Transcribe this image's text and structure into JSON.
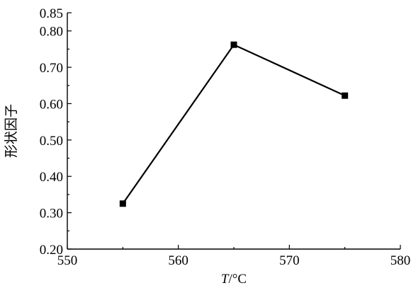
{
  "chart_data": {
    "type": "line",
    "x": [
      555,
      565,
      575
    ],
    "series": [
      {
        "values": [
          0.325,
          0.762,
          0.622
        ]
      }
    ],
    "xlabel": {
      "italic": "T",
      "rest": "/°C"
    },
    "ylabel": "形状因子",
    "xlim": [
      550,
      580
    ],
    "ylim": [
      0.2,
      0.85
    ],
    "xticks": [
      550,
      560,
      570,
      580
    ],
    "xtick_labels": [
      "550",
      "560",
      "570",
      "580"
    ],
    "yticks": [
      0.2,
      0.3,
      0.4,
      0.5,
      0.6,
      0.7,
      0.8,
      0.85
    ],
    "ytick_labels": [
      "0.20",
      "0.30",
      "0.40",
      "0.50",
      "0.60",
      "0.70",
      "0.80",
      "0.85"
    ],
    "grid": false,
    "marker": "square",
    "colors": {
      "line": "#000000",
      "axis": "#000000",
      "background": "#ffffff"
    }
  }
}
